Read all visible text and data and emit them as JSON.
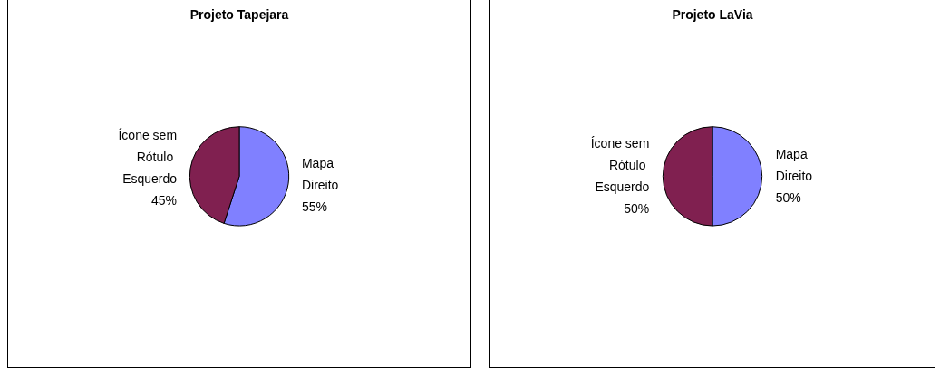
{
  "chart_data": [
    {
      "type": "pie",
      "title": "Projeto Tapejara",
      "categories": [
        "Mapa Direito",
        "Ícone sem Rótulo Esquerdo"
      ],
      "values": [
        55,
        45
      ],
      "value_labels": [
        "55%",
        "45%"
      ],
      "colors": [
        "#8080ff",
        "#802050"
      ],
      "legend": false
    },
    {
      "type": "pie",
      "title": "Projeto LaVia",
      "categories": [
        "Mapa Direito",
        "Ícone sem Rótulo Esquerdo"
      ],
      "values": [
        50,
        50
      ],
      "value_labels": [
        "50%",
        "50%"
      ],
      "colors": [
        "#8080ff",
        "#802050"
      ],
      "legend": false
    }
  ]
}
